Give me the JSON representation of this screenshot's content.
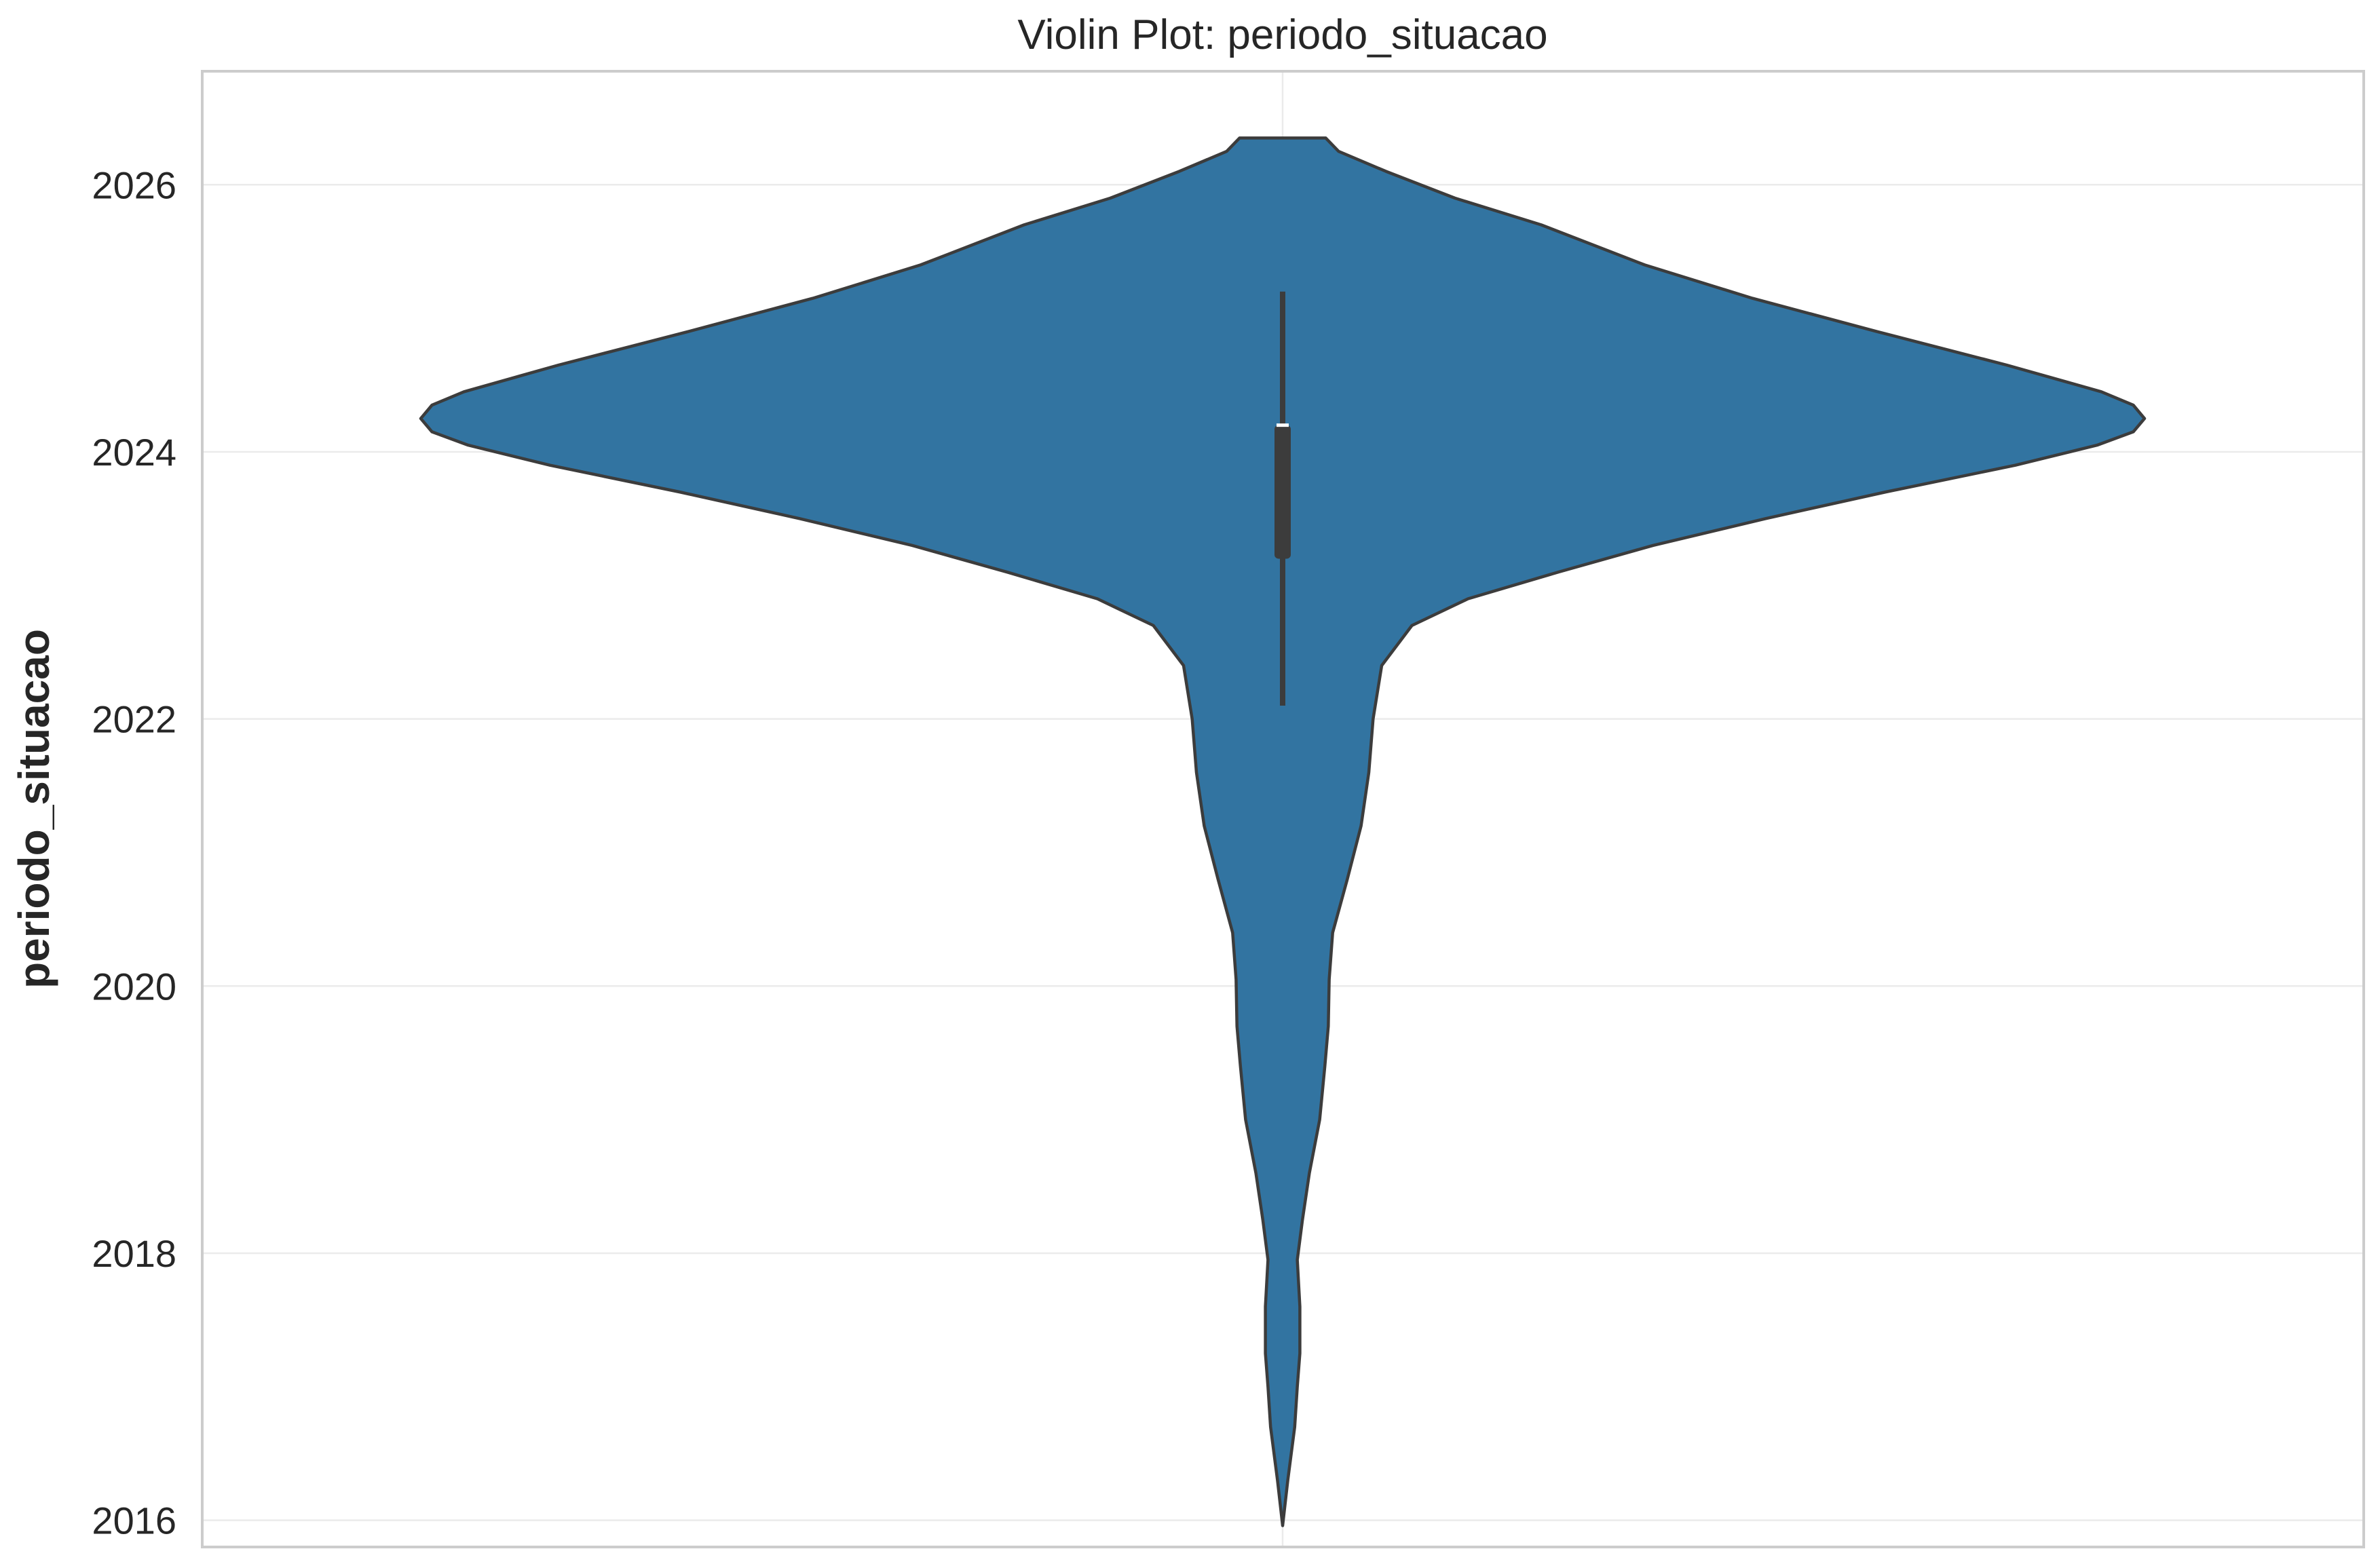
{
  "chart_data": {
    "type": "violin",
    "title": "Violin Plot: periodo_situacao",
    "xlabel": "",
    "ylabel": "periodo_situacao",
    "ylim": [
      2015.8,
      2026.85
    ],
    "yticks": [
      2016,
      2018,
      2020,
      2022,
      2024,
      2026
    ],
    "grid": true,
    "colors": {
      "violin_fill": "#3274a1",
      "violin_edge": "#3c3c3c",
      "box": "#3c3c3c",
      "median": "#ffffff",
      "grid": "#ebebeb",
      "frame": "#cccccc"
    },
    "series": [
      {
        "name": "periodo_situacao",
        "density": [
          {
            "y": 2015.96,
            "w": 0.0
          },
          {
            "y": 2016.3,
            "w": 0.006
          },
          {
            "y": 2016.7,
            "w": 0.014
          },
          {
            "y": 2017.0,
            "w": 0.017
          },
          {
            "y": 2017.25,
            "w": 0.02
          },
          {
            "y": 2017.6,
            "w": 0.02
          },
          {
            "y": 2017.95,
            "w": 0.017
          },
          {
            "y": 2018.25,
            "w": 0.023
          },
          {
            "y": 2018.6,
            "w": 0.031
          },
          {
            "y": 2019.0,
            "w": 0.043
          },
          {
            "y": 2019.4,
            "w": 0.049
          },
          {
            "y": 2019.7,
            "w": 0.053
          },
          {
            "y": 2020.05,
            "w": 0.054
          },
          {
            "y": 2020.4,
            "w": 0.058
          },
          {
            "y": 2020.8,
            "w": 0.075
          },
          {
            "y": 2021.2,
            "w": 0.091
          },
          {
            "y": 2021.6,
            "w": 0.1
          },
          {
            "y": 2022.0,
            "w": 0.105
          },
          {
            "y": 2022.4,
            "w": 0.115
          },
          {
            "y": 2022.7,
            "w": 0.15
          },
          {
            "y": 2022.9,
            "w": 0.215
          },
          {
            "y": 2023.1,
            "w": 0.32
          },
          {
            "y": 2023.3,
            "w": 0.43
          },
          {
            "y": 2023.5,
            "w": 0.56
          },
          {
            "y": 2023.7,
            "w": 0.7
          },
          {
            "y": 2023.9,
            "w": 0.85
          },
          {
            "y": 2024.05,
            "w": 0.945
          },
          {
            "y": 2024.15,
            "w": 0.987
          },
          {
            "y": 2024.25,
            "w": 1.0
          },
          {
            "y": 2024.35,
            "w": 0.987
          },
          {
            "y": 2024.45,
            "w": 0.95
          },
          {
            "y": 2024.65,
            "w": 0.84
          },
          {
            "y": 2024.9,
            "w": 0.69
          },
          {
            "y": 2025.15,
            "w": 0.545
          },
          {
            "y": 2025.4,
            "w": 0.42
          },
          {
            "y": 2025.7,
            "w": 0.3
          },
          {
            "y": 2025.9,
            "w": 0.2
          },
          {
            "y": 2026.1,
            "w": 0.12
          },
          {
            "y": 2026.25,
            "w": 0.065
          },
          {
            "y": 2026.35,
            "w": 0.05
          }
        ],
        "box": {
          "whisker_low": 2022.1,
          "q1": 2023.2,
          "median": 2024.2,
          "q3": 2024.2,
          "whisker_high": 2025.2
        }
      }
    ]
  }
}
